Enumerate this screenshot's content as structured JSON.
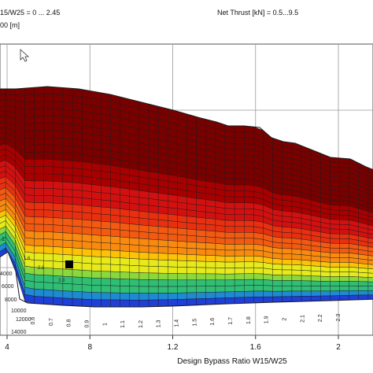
{
  "header": {
    "bypass_param": "15/W25 = 0 ... 2.45",
    "altitude_param": "00 [m]",
    "thrust_param": "Net Thrust [kN] = 0.5...9.5"
  },
  "chart_data": {
    "type": "heatmap",
    "title": "",
    "xlabel": "Design Bypass Ratio W15/W25",
    "ylabel": "",
    "xlim": [
      0.4,
      2.25
    ],
    "x_ticks": [
      "4",
      "8",
      "1.2",
      "1.6",
      "2"
    ],
    "x_tick_values": [
      0.4,
      0.8,
      1.2,
      1.6,
      2.0
    ],
    "grid": true,
    "colormap": [
      "#7a0000",
      "#a80000",
      "#d31010",
      "#e83010",
      "#f25a12",
      "#f98a10",
      "#fbc208",
      "#e6ea1a",
      "#8ad83c",
      "#2fbe74",
      "#1e8ad2",
      "#1f3fd6"
    ],
    "marker": {
      "label": "selected point",
      "x": 0.7
    },
    "bottom_edge_labels": [
      "0.6",
      "0.7",
      "0.8",
      "0.9",
      "1",
      "1.1",
      "1.2",
      "1.3",
      "1.4",
      "1.5",
      "1.6",
      "1.7",
      "1.8",
      "1.9",
      "2",
      "2.1",
      "2.2",
      "2.3"
    ],
    "left_edge_labels": [
      "1",
      "4000",
      "6000",
      "8000",
      "10000",
      "12000",
      "14000"
    ],
    "inner_labels": [
      "1.6",
      "2.8",
      "3.8"
    ]
  }
}
